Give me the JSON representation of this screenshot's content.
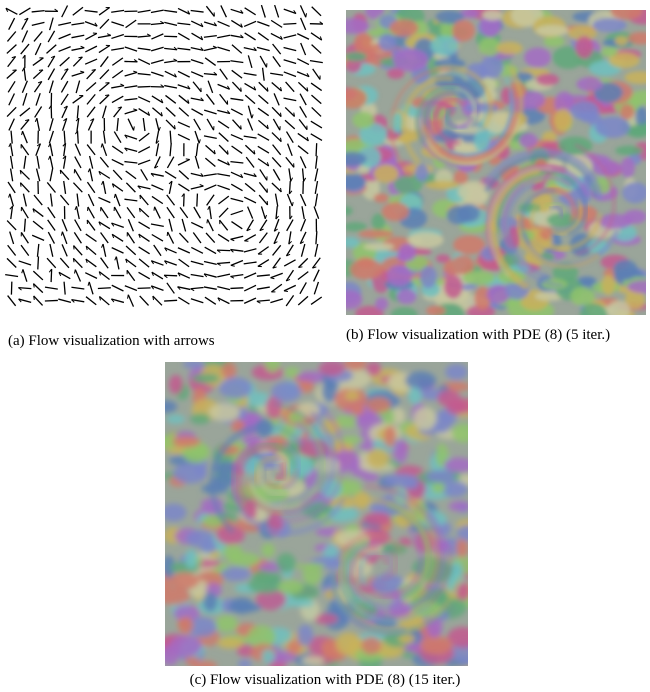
{
  "figure": {
    "subfigures": [
      {
        "caption": "(a) Flow visualization with arrows"
      },
      {
        "caption": "(b) Flow visualization with PDE (8) (5 iter.)"
      },
      {
        "caption": "(c) Flow visualization with PDE (8) (15 iter.)"
      }
    ]
  }
}
